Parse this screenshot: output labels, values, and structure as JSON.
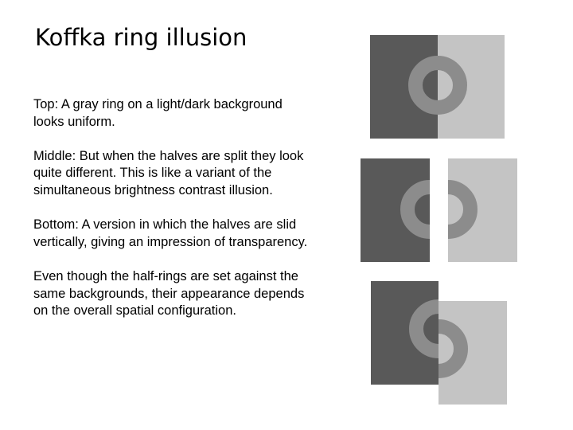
{
  "slide": {
    "title": "Koffka ring illusion",
    "paragraphs": [
      {
        "lines": [
          "Top: A gray ring on a light/dark background",
          "looks uniform."
        ]
      },
      {
        "lines": [
          "Middle: But when the halves are split they look",
          "quite different. This is like a variant of the",
          "simultaneous brightness contrast illusion."
        ]
      },
      {
        "lines": [
          "Bottom: A version in which the halves are slid",
          "vertically, giving an impression of transparency."
        ]
      },
      {
        "lines": [
          "Even though the half-rings are set against the",
          "same backgrounds, their appearance depends",
          "on the overall spatial configuration."
        ]
      }
    ]
  },
  "colors": {
    "dark_background": "#595959",
    "light_background": "#c4c4c4",
    "ring_gray": "#8c8c8c"
  }
}
